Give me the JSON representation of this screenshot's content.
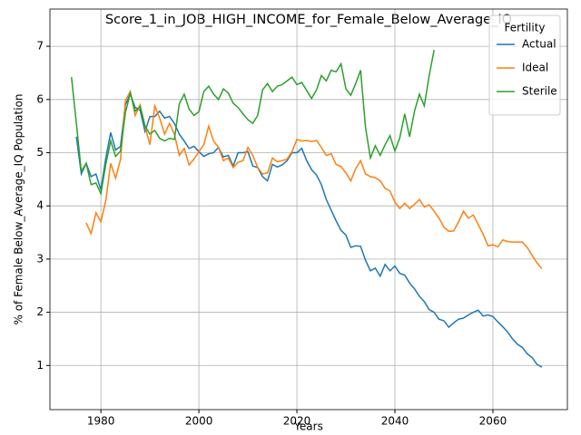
{
  "chart_data": {
    "type": "line",
    "title": "Score_1_in_JOB_HIGH_INCOME_for_Female_Below_Average_IQ",
    "x_label": "Years",
    "y_label": "% of Female Below_Average_IQ Population",
    "legend_title": "Fertility",
    "legend": "upper right",
    "grid": true,
    "xlim": [
      1969.6,
      2075.2
    ],
    "xticks": [
      1980,
      2000,
      2020,
      2040,
      2060
    ],
    "ylim": [
      0.17,
      7.7
    ],
    "yticks": [
      1,
      2,
      3,
      4,
      5,
      6,
      7
    ],
    "x": [
      1974,
      1975,
      1976,
      1977,
      1978,
      1979,
      1980,
      1981,
      1982,
      1983,
      1984,
      1985,
      1986,
      1987,
      1988,
      1989,
      1990,
      1991,
      1992,
      1993,
      1994,
      1995,
      1996,
      1997,
      1998,
      1999,
      2000,
      2001,
      2002,
      2003,
      2004,
      2005,
      2006,
      2007,
      2008,
      2009,
      2010,
      2011,
      2012,
      2013,
      2014,
      2015,
      2016,
      2017,
      2018,
      2019,
      2020,
      2021,
      2022,
      2023,
      2024,
      2025,
      2026,
      2027,
      2028,
      2029,
      2030,
      2031,
      2032,
      2033,
      2034,
      2035,
      2036,
      2037,
      2038,
      2039,
      2040,
      2041,
      2042,
      2043,
      2044,
      2045,
      2046,
      2047,
      2048,
      2049,
      2050,
      2051,
      2052,
      2053,
      2054,
      2055,
      2056,
      2057,
      2058,
      2059,
      2060,
      2061,
      2062,
      2063,
      2064,
      2065,
      2066,
      2067,
      2068,
      2069,
      2070
    ],
    "series": [
      {
        "name": "Actual",
        "color": "#1f77b4",
        "values": [
          null,
          5.3,
          4.6,
          4.8,
          4.55,
          4.6,
          4.3,
          4.9,
          5.38,
          5.05,
          5.12,
          5.9,
          6.1,
          5.85,
          5.8,
          5.4,
          5.68,
          5.68,
          5.78,
          5.65,
          5.68,
          5.55,
          5.35,
          5.22,
          5.08,
          5.12,
          5.02,
          4.93,
          4.98,
          5.0,
          5.1,
          4.92,
          4.95,
          4.75,
          5.0,
          5.0,
          5.02,
          4.75,
          4.72,
          4.55,
          4.47,
          4.78,
          4.73,
          4.77,
          4.85,
          5.0,
          5.0,
          5.08,
          4.85,
          4.68,
          4.58,
          4.4,
          4.12,
          3.92,
          3.72,
          3.54,
          3.45,
          3.22,
          3.25,
          3.24,
          2.98,
          2.78,
          2.83,
          2.68,
          2.9,
          2.78,
          2.87,
          2.73,
          2.7,
          2.55,
          2.44,
          2.3,
          2.2,
          2.05,
          2.0,
          1.87,
          1.84,
          1.72,
          1.8,
          1.87,
          1.89,
          1.95,
          2.0,
          2.04,
          1.93,
          1.95,
          1.92,
          1.82,
          1.73,
          1.63,
          1.5,
          1.4,
          1.34,
          1.22,
          1.15,
          1.02,
          0.97
        ]
      },
      {
        "name": "Ideal",
        "color": "#ff7f0e",
        "values": [
          null,
          null,
          null,
          3.68,
          3.48,
          3.87,
          3.7,
          4.1,
          4.8,
          4.52,
          4.87,
          5.98,
          6.15,
          5.7,
          5.9,
          5.5,
          5.15,
          5.88,
          5.65,
          5.35,
          5.55,
          5.35,
          4.95,
          5.08,
          4.77,
          4.88,
          5.02,
          5.15,
          5.5,
          5.22,
          5.1,
          4.85,
          4.9,
          4.72,
          4.82,
          4.85,
          5.1,
          4.95,
          4.72,
          4.6,
          4.62,
          4.9,
          4.83,
          4.85,
          4.88,
          5.02,
          5.25,
          5.22,
          5.23,
          5.21,
          5.23,
          5.1,
          4.95,
          4.98,
          4.78,
          4.74,
          4.62,
          4.47,
          4.7,
          4.85,
          4.6,
          4.55,
          4.53,
          4.47,
          4.33,
          4.28,
          4.07,
          3.95,
          4.05,
          3.95,
          4.03,
          4.12,
          3.98,
          4.02,
          3.9,
          3.77,
          3.6,
          3.52,
          3.53,
          3.7,
          3.9,
          3.77,
          3.83,
          3.65,
          3.47,
          3.25,
          3.27,
          3.23,
          3.36,
          3.33,
          3.32,
          3.32,
          3.32,
          3.22,
          3.07,
          2.93,
          2.82
        ]
      },
      {
        "name": "Sterile",
        "color": "#2ca02c",
        "values": [
          6.42,
          5.55,
          4.65,
          4.8,
          4.4,
          4.43,
          4.23,
          4.78,
          5.22,
          4.93,
          5.03,
          5.75,
          6.12,
          5.78,
          5.87,
          5.5,
          5.35,
          5.42,
          5.27,
          5.22,
          5.27,
          5.25,
          5.92,
          6.1,
          5.82,
          5.7,
          5.77,
          6.15,
          6.25,
          6.1,
          6.0,
          6.2,
          6.12,
          5.93,
          5.85,
          5.73,
          5.62,
          5.55,
          5.7,
          6.18,
          6.3,
          6.15,
          6.25,
          6.28,
          6.35,
          6.42,
          6.28,
          6.32,
          6.17,
          6.02,
          6.18,
          6.45,
          6.35,
          6.55,
          6.52,
          6.67,
          6.2,
          6.08,
          6.3,
          6.55,
          5.48,
          4.9,
          5.13,
          4.95,
          5.15,
          5.32,
          5.03,
          5.28,
          5.73,
          5.3,
          5.78,
          6.1,
          5.88,
          6.45,
          6.93,
          null,
          null,
          null,
          null,
          null,
          null,
          null,
          null,
          null,
          null,
          null,
          null,
          null,
          null,
          null,
          null,
          null,
          null,
          null,
          null,
          null,
          null
        ]
      }
    ]
  }
}
